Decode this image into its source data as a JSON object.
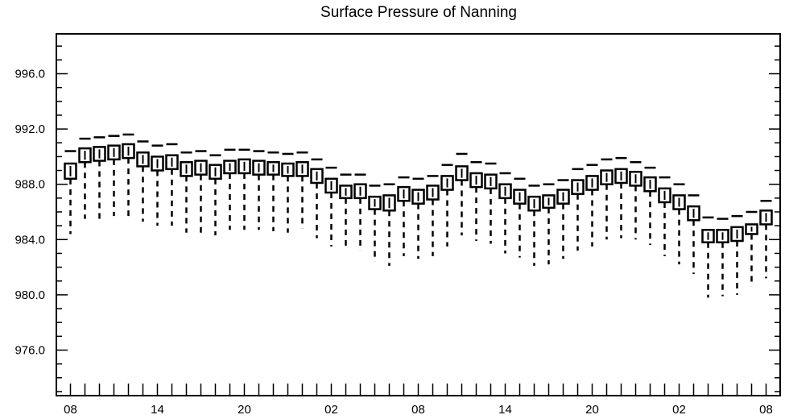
{
  "chart_data": {
    "type": "box",
    "title": "Surface Pressure of Nanning",
    "xlabel": "",
    "ylabel": "",
    "ylim": [
      973,
      999
    ],
    "y_ticks": [
      "976.0",
      "980.0",
      "984.0",
      "988.0",
      "992.0",
      "996.0"
    ],
    "x_tick_labels": [
      "08",
      "14",
      "20",
      "02",
      "08",
      "14",
      "20",
      "02",
      "08"
    ],
    "x_tick_positions": [
      0,
      6,
      12,
      18,
      24,
      30,
      36,
      42,
      48
    ],
    "grid": false,
    "series": [
      {
        "boxes": [
          {
            "x": 0,
            "min": 984.4,
            "q1": 988.4,
            "median": 988.9,
            "q3": 989.5,
            "max": 990.4
          },
          {
            "x": 1,
            "min": 985.5,
            "q1": 989.6,
            "median": 990.1,
            "q3": 990.6,
            "max": 991.3
          },
          {
            "x": 2,
            "min": 985.5,
            "q1": 989.7,
            "median": 990.2,
            "q3": 990.7,
            "max": 991.4
          },
          {
            "x": 3,
            "min": 985.7,
            "q1": 989.8,
            "median": 990.3,
            "q3": 990.8,
            "max": 991.5
          },
          {
            "x": 4,
            "min": 985.7,
            "q1": 989.9,
            "median": 990.4,
            "q3": 990.9,
            "max": 991.6
          },
          {
            "x": 5,
            "min": 985.3,
            "q1": 989.3,
            "median": 989.8,
            "q3": 990.3,
            "max": 991.1
          },
          {
            "x": 6,
            "min": 985.0,
            "q1": 989.0,
            "median": 989.5,
            "q3": 990.0,
            "max": 990.8
          },
          {
            "x": 7,
            "min": 985.0,
            "q1": 989.1,
            "median": 989.6,
            "q3": 990.1,
            "max": 990.9
          },
          {
            "x": 8,
            "min": 984.5,
            "q1": 988.6,
            "median": 989.1,
            "q3": 989.6,
            "max": 990.3
          },
          {
            "x": 9,
            "min": 984.5,
            "q1": 988.7,
            "median": 989.2,
            "q3": 989.7,
            "max": 990.4
          },
          {
            "x": 10,
            "min": 984.3,
            "q1": 988.4,
            "median": 988.9,
            "q3": 989.4,
            "max": 990.1
          },
          {
            "x": 11,
            "min": 984.7,
            "q1": 988.8,
            "median": 989.2,
            "q3": 989.7,
            "max": 990.5
          },
          {
            "x": 12,
            "min": 984.7,
            "q1": 988.8,
            "median": 989.3,
            "q3": 989.8,
            "max": 990.5
          },
          {
            "x": 13,
            "min": 984.7,
            "q1": 988.7,
            "median": 989.2,
            "q3": 989.7,
            "max": 990.4
          },
          {
            "x": 14,
            "min": 984.6,
            "q1": 988.7,
            "median": 989.1,
            "q3": 989.6,
            "max": 990.3
          },
          {
            "x": 15,
            "min": 984.5,
            "q1": 988.6,
            "median": 989.0,
            "q3": 989.5,
            "max": 990.2
          },
          {
            "x": 16,
            "min": 984.8,
            "q1": 988.6,
            "median": 989.1,
            "q3": 989.6,
            "max": 990.3
          },
          {
            "x": 17,
            "min": 984.1,
            "q1": 988.1,
            "median": 988.6,
            "q3": 989.1,
            "max": 989.8
          },
          {
            "x": 18,
            "min": 983.5,
            "q1": 987.4,
            "median": 987.9,
            "q3": 988.4,
            "max": 989.2
          },
          {
            "x": 19,
            "min": 983.3,
            "q1": 987.0,
            "median": 987.4,
            "q3": 987.9,
            "max": 988.7
          },
          {
            "x": 20,
            "min": 983.2,
            "q1": 987.0,
            "median": 987.5,
            "q3": 988.0,
            "max": 988.7
          },
          {
            "x": 21,
            "min": 982.4,
            "q1": 986.2,
            "median": 986.6,
            "q3": 987.1,
            "max": 987.9
          },
          {
            "x": 22,
            "min": 982.1,
            "q1": 986.1,
            "median": 986.7,
            "q3": 987.2,
            "max": 988.0
          },
          {
            "x": 23,
            "min": 982.8,
            "q1": 986.8,
            "median": 987.3,
            "q3": 987.8,
            "max": 988.5
          },
          {
            "x": 24,
            "min": 982.6,
            "q1": 986.6,
            "median": 987.1,
            "q3": 987.6,
            "max": 988.4
          },
          {
            "x": 25,
            "min": 982.8,
            "q1": 986.9,
            "median": 987.4,
            "q3": 987.9,
            "max": 988.6
          },
          {
            "x": 26,
            "min": 983.5,
            "q1": 987.6,
            "median": 988.1,
            "q3": 988.6,
            "max": 989.4
          },
          {
            "x": 27,
            "min": 984.3,
            "q1": 988.3,
            "median": 988.8,
            "q3": 989.3,
            "max": 990.2
          },
          {
            "x": 28,
            "min": 983.9,
            "q1": 987.8,
            "median": 988.3,
            "q3": 988.8,
            "max": 989.6
          },
          {
            "x": 29,
            "min": 983.7,
            "q1": 987.7,
            "median": 988.2,
            "q3": 988.7,
            "max": 989.5
          },
          {
            "x": 30,
            "min": 983.0,
            "q1": 987.0,
            "median": 987.5,
            "q3": 988.0,
            "max": 988.8
          },
          {
            "x": 31,
            "min": 982.7,
            "q1": 986.6,
            "median": 987.1,
            "q3": 987.6,
            "max": 988.4
          },
          {
            "x": 32,
            "min": 982.1,
            "q1": 986.1,
            "median": 986.6,
            "q3": 987.1,
            "max": 987.9
          },
          {
            "x": 33,
            "min": 982.2,
            "q1": 986.3,
            "median": 986.7,
            "q3": 987.2,
            "max": 988.0
          },
          {
            "x": 34,
            "min": 982.6,
            "q1": 986.6,
            "median": 987.1,
            "q3": 987.6,
            "max": 988.3
          },
          {
            "x": 35,
            "min": 983.2,
            "q1": 987.3,
            "median": 987.8,
            "q3": 988.3,
            "max": 989.1
          },
          {
            "x": 36,
            "min": 983.5,
            "q1": 987.6,
            "median": 988.1,
            "q3": 988.6,
            "max": 989.4
          },
          {
            "x": 37,
            "min": 984.0,
            "q1": 988.0,
            "median": 988.5,
            "q3": 989.0,
            "max": 989.8
          },
          {
            "x": 38,
            "min": 984.1,
            "q1": 988.1,
            "median": 988.6,
            "q3": 989.1,
            "max": 989.9
          },
          {
            "x": 39,
            "min": 984.0,
            "q1": 987.9,
            "median": 988.4,
            "q3": 988.9,
            "max": 989.6
          },
          {
            "x": 40,
            "min": 983.6,
            "q1": 987.5,
            "median": 988.0,
            "q3": 988.5,
            "max": 989.2
          },
          {
            "x": 41,
            "min": 982.8,
            "q1": 986.7,
            "median": 987.2,
            "q3": 987.7,
            "max": 988.5
          },
          {
            "x": 42,
            "min": 982.2,
            "q1": 986.2,
            "median": 986.7,
            "q3": 987.2,
            "max": 988.0
          },
          {
            "x": 43,
            "min": 981.5,
            "q1": 985.4,
            "median": 985.9,
            "q3": 986.4,
            "max": 987.2
          },
          {
            "x": 44,
            "min": 979.8,
            "q1": 983.8,
            "median": 984.2,
            "q3": 984.7,
            "max": 985.6
          },
          {
            "x": 45,
            "min": 979.9,
            "q1": 983.8,
            "median": 984.2,
            "q3": 984.7,
            "max": 985.5
          },
          {
            "x": 46,
            "min": 980.0,
            "q1": 983.9,
            "median": 984.4,
            "q3": 984.9,
            "max": 985.7
          },
          {
            "x": 47,
            "min": 980.6,
            "q1": 984.4,
            "median": 984.8,
            "q3": 985.1,
            "max": 986.0
          },
          {
            "x": 48,
            "min": 981.2,
            "q1": 985.1,
            "median": 985.6,
            "q3": 986.1,
            "max": 986.8
          }
        ]
      }
    ]
  }
}
